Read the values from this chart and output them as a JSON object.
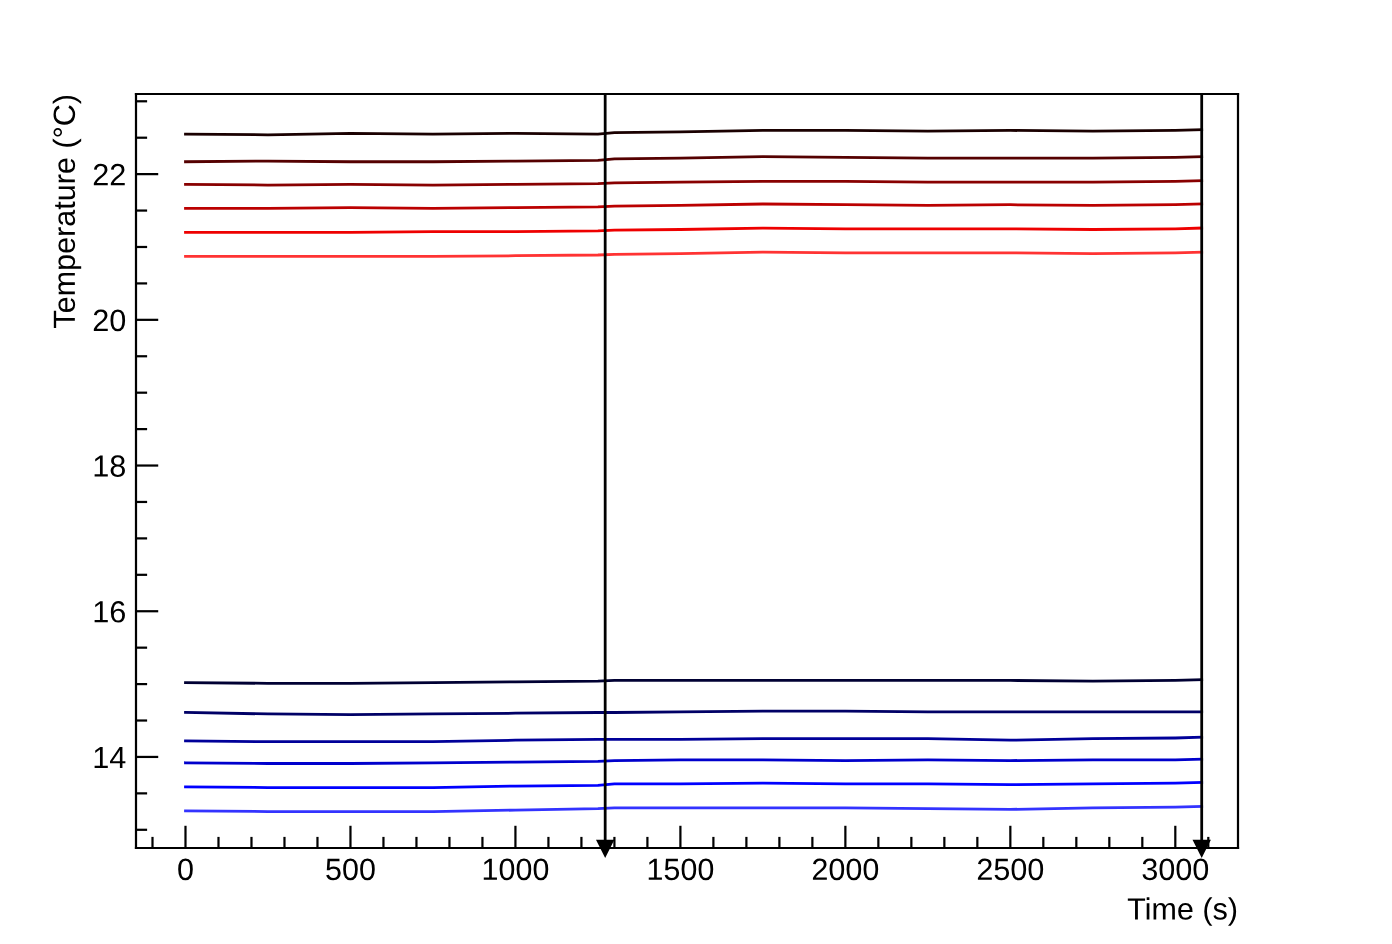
{
  "chart_data": {
    "type": "line",
    "xlabel": "Time (s)",
    "ylabel": "Temperature (°C)",
    "x": [
      0,
      250,
      500,
      750,
      1000,
      1250,
      1300,
      1500,
      1750,
      2000,
      2250,
      2500,
      2750,
      3000,
      3080
    ],
    "series": [
      {
        "color": "#1a0000",
        "values": [
          22.55,
          22.54,
          22.56,
          22.55,
          22.56,
          22.55,
          22.57,
          22.58,
          22.6,
          22.6,
          22.59,
          22.6,
          22.59,
          22.6,
          22.61
        ]
      },
      {
        "color": "#550000",
        "values": [
          22.17,
          22.18,
          22.17,
          22.17,
          22.18,
          22.19,
          22.21,
          22.22,
          22.24,
          22.23,
          22.22,
          22.22,
          22.22,
          22.23,
          22.24
        ]
      },
      {
        "color": "#880000",
        "values": [
          21.86,
          21.85,
          21.86,
          21.85,
          21.86,
          21.87,
          21.88,
          21.89,
          21.9,
          21.9,
          21.89,
          21.89,
          21.89,
          21.9,
          21.91
        ]
      },
      {
        "color": "#bb0000",
        "values": [
          21.53,
          21.53,
          21.54,
          21.53,
          21.54,
          21.55,
          21.56,
          21.57,
          21.59,
          21.58,
          21.57,
          21.58,
          21.57,
          21.58,
          21.59
        ]
      },
      {
        "color": "#ee0000",
        "values": [
          21.2,
          21.2,
          21.2,
          21.21,
          21.21,
          21.22,
          21.23,
          21.24,
          21.26,
          21.25,
          21.25,
          21.25,
          21.24,
          21.25,
          21.26
        ]
      },
      {
        "color": "#ff3333",
        "values": [
          20.87,
          20.87,
          20.87,
          20.87,
          20.88,
          20.89,
          20.9,
          20.91,
          20.93,
          20.92,
          20.92,
          20.92,
          20.91,
          20.92,
          20.93
        ]
      },
      {
        "color": "#000033",
        "values": [
          15.02,
          15.01,
          15.01,
          15.02,
          15.03,
          15.04,
          15.05,
          15.05,
          15.05,
          15.05,
          15.05,
          15.05,
          15.04,
          15.05,
          15.06
        ]
      },
      {
        "color": "#000066",
        "values": [
          14.61,
          14.59,
          14.58,
          14.59,
          14.6,
          14.61,
          14.61,
          14.62,
          14.63,
          14.63,
          14.62,
          14.62,
          14.62,
          14.62,
          14.62
        ]
      },
      {
        "color": "#000099",
        "values": [
          14.22,
          14.21,
          14.21,
          14.21,
          14.23,
          14.24,
          14.24,
          14.24,
          14.25,
          14.25,
          14.25,
          14.23,
          14.25,
          14.26,
          14.27
        ]
      },
      {
        "color": "#0000cc",
        "values": [
          13.92,
          13.91,
          13.91,
          13.92,
          13.93,
          13.94,
          13.95,
          13.96,
          13.96,
          13.95,
          13.96,
          13.95,
          13.96,
          13.96,
          13.97
        ]
      },
      {
        "color": "#0000ff",
        "values": [
          13.59,
          13.58,
          13.58,
          13.58,
          13.6,
          13.61,
          13.63,
          13.63,
          13.64,
          13.63,
          13.63,
          13.62,
          13.63,
          13.64,
          13.65
        ]
      },
      {
        "color": "#3333ff",
        "values": [
          13.26,
          13.25,
          13.25,
          13.25,
          13.27,
          13.29,
          13.3,
          13.3,
          13.3,
          13.3,
          13.29,
          13.28,
          13.3,
          13.31,
          13.32
        ]
      }
    ],
    "xlim": [
      -150,
      3190
    ],
    "ylim": [
      12.75,
      23.1
    ],
    "xticks": [
      {
        "value": -100,
        "label": null
      },
      0,
      {
        "value": 100,
        "label": null
      },
      {
        "value": 200,
        "label": null
      },
      {
        "value": 300,
        "label": null
      },
      {
        "value": 400,
        "label": null
      },
      500,
      {
        "value": 600,
        "label": null
      },
      {
        "value": 700,
        "label": null
      },
      {
        "value": 800,
        "label": null
      },
      {
        "value": 900,
        "label": null
      },
      1000,
      {
        "value": 1100,
        "label": null
      },
      {
        "value": 1200,
        "label": null
      },
      {
        "value": 1300,
        "label": null
      },
      {
        "value": 1400,
        "label": null
      },
      1500,
      {
        "value": 1600,
        "label": null
      },
      {
        "value": 1700,
        "label": null
      },
      {
        "value": 1800,
        "label": null
      },
      {
        "value": 1900,
        "label": null
      },
      2000,
      {
        "value": 2100,
        "label": null
      },
      {
        "value": 2200,
        "label": null
      },
      {
        "value": 2300,
        "label": null
      },
      {
        "value": 2400,
        "label": null
      },
      2500,
      {
        "value": 2600,
        "label": null
      },
      {
        "value": 2700,
        "label": null
      },
      {
        "value": 2800,
        "label": null
      },
      {
        "value": 2900,
        "label": null
      },
      3000,
      {
        "value": 3100,
        "label": null
      }
    ],
    "yticks": [
      {
        "value": 13,
        "label": null
      },
      {
        "value": 13.5,
        "label": null
      },
      14,
      {
        "value": 14.5,
        "label": null
      },
      {
        "value": 15,
        "label": null
      },
      {
        "value": 15.5,
        "label": null
      },
      16,
      {
        "value": 16.5,
        "label": null
      },
      {
        "value": 17,
        "label": null
      },
      {
        "value": 17.5,
        "label": null
      },
      18,
      {
        "value": 18.5,
        "label": null
      },
      {
        "value": 19,
        "label": null
      },
      {
        "value": 19.5,
        "label": null
      },
      20,
      {
        "value": 20.5,
        "label": null
      },
      {
        "value": 21,
        "label": null
      },
      {
        "value": 21.5,
        "label": null
      },
      22,
      {
        "value": 22.5,
        "label": null
      },
      {
        "value": 23,
        "label": null
      }
    ],
    "ref_lines": [
      {
        "axis": "x",
        "value": 1272,
        "color": "#000000"
      },
      {
        "axis": "x",
        "value": 3080,
        "color": "#000000"
      }
    ],
    "grid": false,
    "legend": false,
    "marker": "none",
    "line_style": "solid"
  }
}
